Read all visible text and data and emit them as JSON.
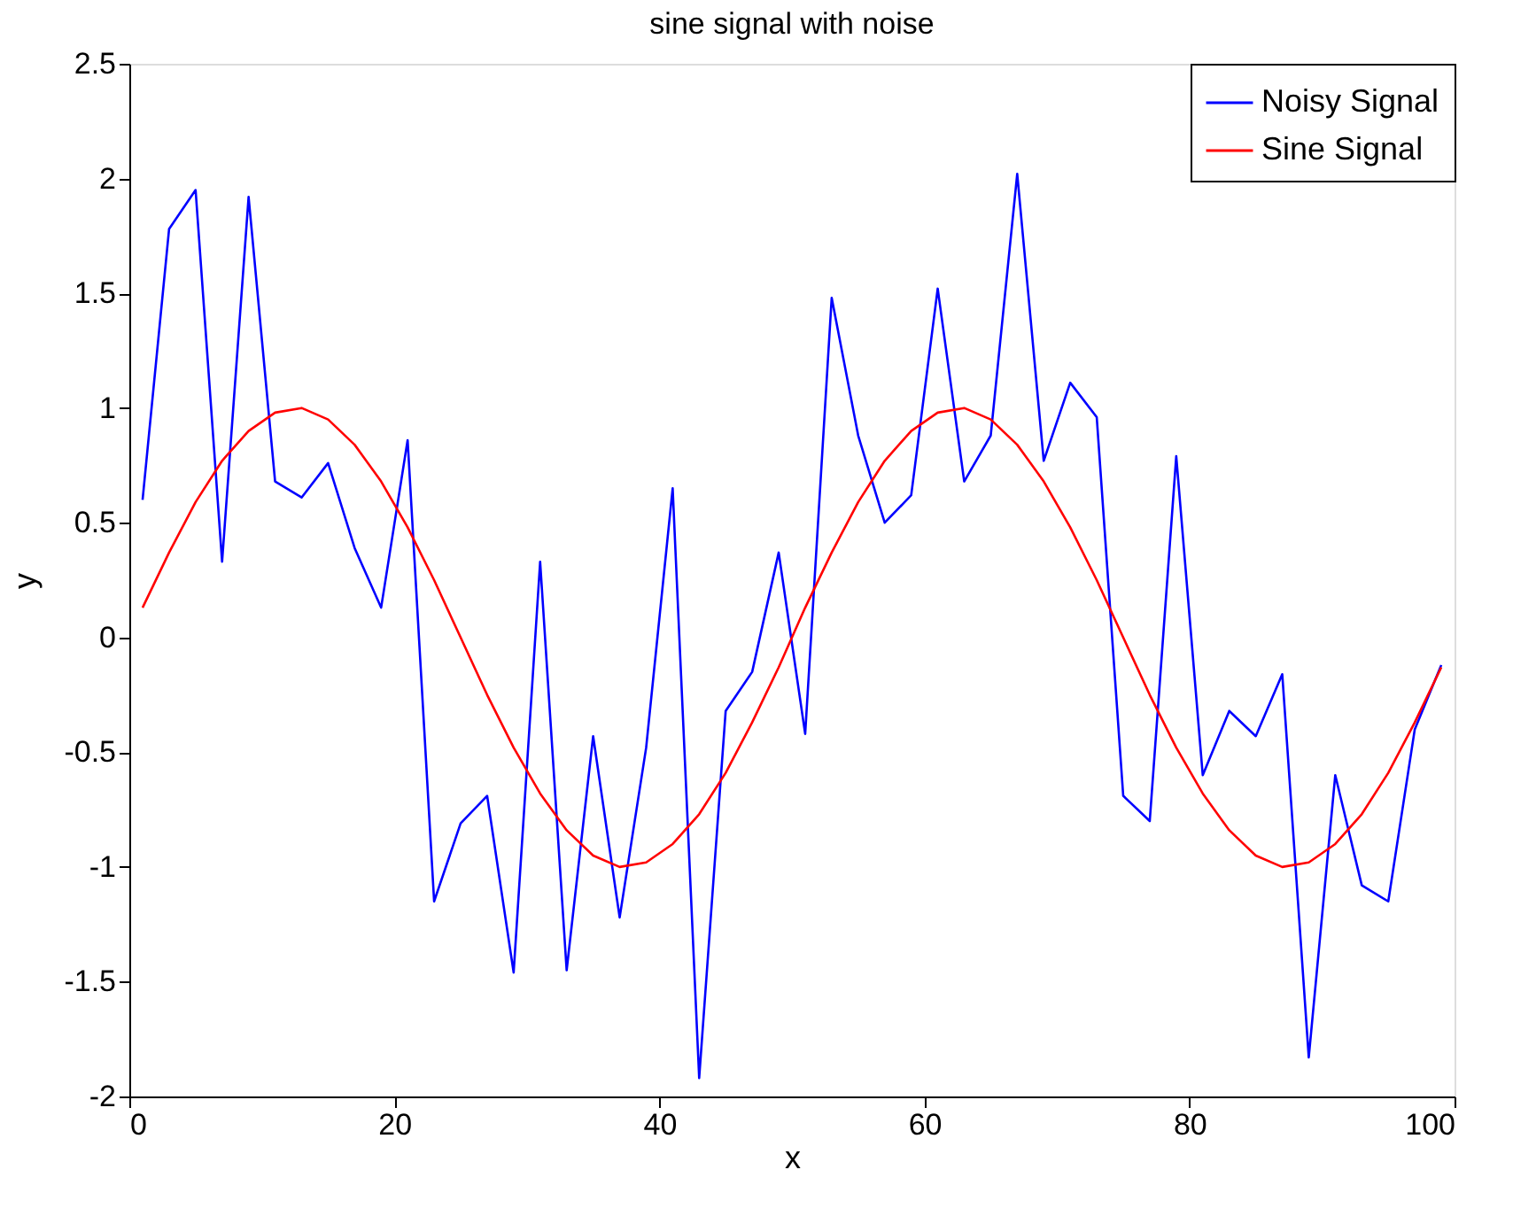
{
  "chart_data": {
    "type": "line",
    "title": "sine signal with noise",
    "xlabel": "x",
    "ylabel": "y",
    "x": [
      1,
      3,
      5,
      7,
      9,
      11,
      13,
      15,
      17,
      19,
      21,
      23,
      25,
      27,
      29,
      31,
      33,
      35,
      37,
      39,
      41,
      43,
      45,
      47,
      49,
      51,
      53,
      55,
      57,
      59,
      61,
      63,
      65,
      67,
      69,
      71,
      73,
      75,
      77,
      79,
      81,
      83,
      85,
      87,
      89,
      91,
      93,
      95,
      97,
      99
    ],
    "series": [
      {
        "name": "Noisy Signal",
        "color": "#0000ff",
        "values": [
          0.6,
          1.78,
          1.95,
          0.33,
          1.92,
          0.68,
          0.61,
          0.76,
          0.39,
          0.13,
          0.86,
          -1.15,
          -0.81,
          -0.69,
          -1.46,
          0.33,
          -1.45,
          -0.43,
          -1.22,
          -0.48,
          0.65,
          -1.92,
          -0.32,
          -0.15,
          0.37,
          -0.42,
          1.48,
          0.88,
          0.5,
          0.62,
          1.52,
          0.68,
          0.88,
          2.02,
          0.77,
          1.11,
          0.96,
          -0.69,
          -0.8,
          0.79,
          -0.6,
          -0.32,
          -0.43,
          -0.16,
          -1.83,
          -0.6,
          -1.08,
          -1.15,
          -0.4,
          -0.12
        ]
      },
      {
        "name": "Sine Signal",
        "color": "#ff0000",
        "values": [
          0.13,
          0.37,
          0.59,
          0.77,
          0.9,
          0.98,
          1.0,
          0.95,
          0.84,
          0.68,
          0.48,
          0.25,
          0.0,
          -0.25,
          -0.48,
          -0.68,
          -0.84,
          -0.95,
          -1.0,
          -0.98,
          -0.9,
          -0.77,
          -0.59,
          -0.37,
          -0.13,
          0.13,
          0.37,
          0.59,
          0.77,
          0.9,
          0.98,
          1.0,
          0.95,
          0.84,
          0.68,
          0.48,
          0.25,
          0.0,
          -0.25,
          -0.48,
          -0.68,
          -0.84,
          -0.95,
          -1.0,
          -0.98,
          -0.9,
          -0.77,
          -0.59,
          -0.37,
          -0.13
        ]
      }
    ],
    "xlim": [
      0,
      100
    ],
    "xticks": [
      0,
      20,
      40,
      60,
      80,
      100
    ],
    "ylim": [
      -2,
      2.5
    ],
    "yticks": [
      -2,
      -1.5,
      -1,
      -0.5,
      0,
      0.5,
      1,
      1.5,
      2,
      2.5
    ],
    "grid": false,
    "legend": "top right",
    "line_style": "solid",
    "marker": "none"
  }
}
